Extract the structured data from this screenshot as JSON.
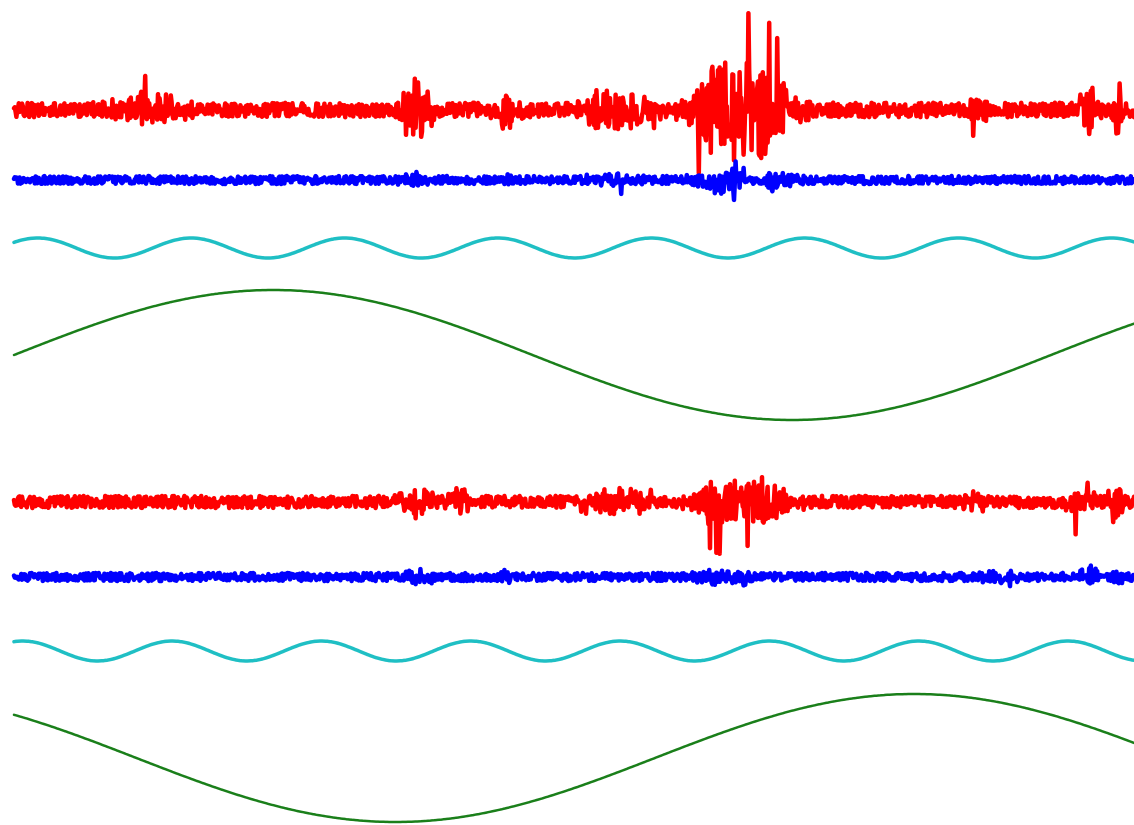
{
  "chart_data": [
    {
      "type": "line",
      "panel": "top",
      "title": "",
      "xlabel": "",
      "ylabel": "",
      "grid": false,
      "legend": "none",
      "axes_visible": false,
      "x_range": [
        0,
        1
      ],
      "series": [
        {
          "key": "red",
          "color": "#ff0000",
          "kind": "noisy-bursts",
          "baseline_amplitude": 0.12,
          "bursts": [
            {
              "center": 0.12,
              "width": 0.06,
              "peak": 0.45
            },
            {
              "center": 0.36,
              "width": 0.03,
              "peak": 1.0
            },
            {
              "center": 0.44,
              "width": 0.02,
              "peak": 0.6
            },
            {
              "center": 0.54,
              "width": 0.05,
              "peak": 0.85
            },
            {
              "center": 0.63,
              "width": 0.05,
              "peak": 1.6
            },
            {
              "center": 0.67,
              "width": 0.05,
              "peak": 1.3
            },
            {
              "center": 0.86,
              "width": 0.02,
              "peak": 0.35
            },
            {
              "center": 0.96,
              "width": 0.02,
              "peak": 0.7
            },
            {
              "center": 0.985,
              "width": 0.01,
              "peak": 0.9
            }
          ]
        },
        {
          "key": "blue",
          "color": "#0000ff",
          "kind": "noisy-bursts",
          "baseline_amplitude": 0.1,
          "bursts": [
            {
              "center": 0.36,
              "width": 0.02,
              "peak": 0.3
            },
            {
              "center": 0.44,
              "width": 0.01,
              "peak": 0.25
            },
            {
              "center": 0.54,
              "width": 0.04,
              "peak": 0.25
            },
            {
              "center": 0.63,
              "width": 0.04,
              "peak": 0.6
            },
            {
              "center": 0.68,
              "width": 0.03,
              "peak": 0.4
            }
          ]
        },
        {
          "key": "cyan",
          "color": "#1fbfc4",
          "kind": "oscillation",
          "cycles": 7.3,
          "phase": 0.6,
          "amplitude": 1.0
        },
        {
          "key": "green",
          "color": "#1a7f1a",
          "kind": "oscillation",
          "cycles": 1.08,
          "phase": 0.0,
          "amplitude": 1.0
        }
      ]
    },
    {
      "type": "line",
      "panel": "bottom",
      "title": "",
      "xlabel": "",
      "ylabel": "",
      "grid": false,
      "legend": "none",
      "axes_visible": false,
      "x_range": [
        0,
        1
      ],
      "series": [
        {
          "key": "red",
          "color": "#ff0000",
          "kind": "noisy-bursts",
          "baseline_amplitude": 0.12,
          "bursts": [
            {
              "center": 0.36,
              "width": 0.03,
              "peak": 0.55
            },
            {
              "center": 0.4,
              "width": 0.02,
              "peak": 0.45
            },
            {
              "center": 0.54,
              "width": 0.05,
              "peak": 0.45
            },
            {
              "center": 0.63,
              "width": 0.05,
              "peak": 0.9
            },
            {
              "center": 0.67,
              "width": 0.04,
              "peak": 0.75
            },
            {
              "center": 0.86,
              "width": 0.02,
              "peak": 0.3
            },
            {
              "center": 0.95,
              "width": 0.02,
              "peak": 0.55
            },
            {
              "center": 0.985,
              "width": 0.01,
              "peak": 1.2
            }
          ]
        },
        {
          "key": "blue",
          "color": "#0000ff",
          "kind": "noisy-bursts",
          "baseline_amplitude": 0.1,
          "bursts": [
            {
              "center": 0.36,
              "width": 0.02,
              "peak": 0.3
            },
            {
              "center": 0.44,
              "width": 0.01,
              "peak": 0.25
            },
            {
              "center": 0.63,
              "width": 0.04,
              "peak": 0.35
            },
            {
              "center": 0.88,
              "width": 0.02,
              "peak": 0.3
            },
            {
              "center": 0.96,
              "width": 0.02,
              "peak": 0.4
            },
            {
              "center": 0.985,
              "width": 0.01,
              "peak": 0.35
            }
          ]
        },
        {
          "key": "cyan",
          "color": "#1fbfc4",
          "kind": "oscillation",
          "cycles": 7.5,
          "phase": 1.2,
          "amplitude": 1.0
        },
        {
          "key": "green",
          "color": "#1a7f1a",
          "kind": "oscillation",
          "cycles": 1.08,
          "phase": 2.4,
          "amplitude": 1.0
        }
      ]
    }
  ]
}
